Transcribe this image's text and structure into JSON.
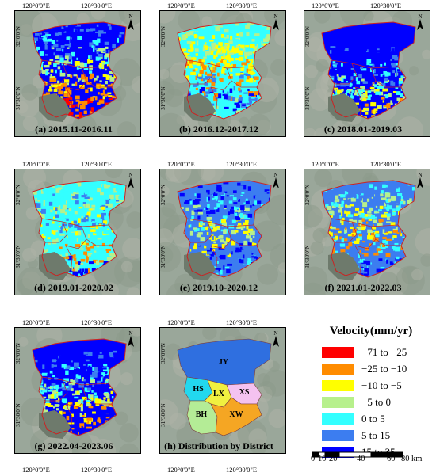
{
  "axes": {
    "top_left": "120°0'0\"E",
    "top_right": "120°30'0\"E",
    "left_top": "32°0'0\"N",
    "left_bottom": "31°30'0\"N"
  },
  "panels": [
    {
      "id": "a",
      "caption": "(a) 2015.11-2016.11"
    },
    {
      "id": "b",
      "caption": "(b) 2016.12-2017.12"
    },
    {
      "id": "c",
      "caption": "(c) 2018.01-2019.03"
    },
    {
      "id": "d",
      "caption": "(d) 2019.01-2020.02"
    },
    {
      "id": "e",
      "caption": "(e) 2019.10-2020.12"
    },
    {
      "id": "f",
      "caption": "(f) 2021.01-2022.03"
    },
    {
      "id": "g",
      "caption": "(g) 2022.04-2023.06"
    },
    {
      "id": "h",
      "caption": "(h) Distribution by District"
    }
  ],
  "north_label": "N",
  "districts": [
    "JY",
    "HS",
    "XS",
    "LX",
    "BH",
    "XW"
  ],
  "legend": {
    "title": "Velocity(mm/yr)",
    "items": [
      {
        "label": "−71 to −25",
        "color": "#ff0000"
      },
      {
        "label": "−25 to −10",
        "color": "#ff8c00"
      },
      {
        "label": "−10 to −5",
        "color": "#ffff00"
      },
      {
        "label": "−5 to 0",
        "color": "#b7f08c"
      },
      {
        "label": "0 to 5",
        "color": "#33ffff"
      },
      {
        "label": "5 to 15",
        "color": "#3c7df0"
      },
      {
        "label": "15 to 35",
        "color": "#0000ff"
      }
    ]
  },
  "scalebar": {
    "ticks": [
      "0",
      "10",
      "20",
      "40",
      "60",
      "80"
    ],
    "unit": "km"
  }
}
